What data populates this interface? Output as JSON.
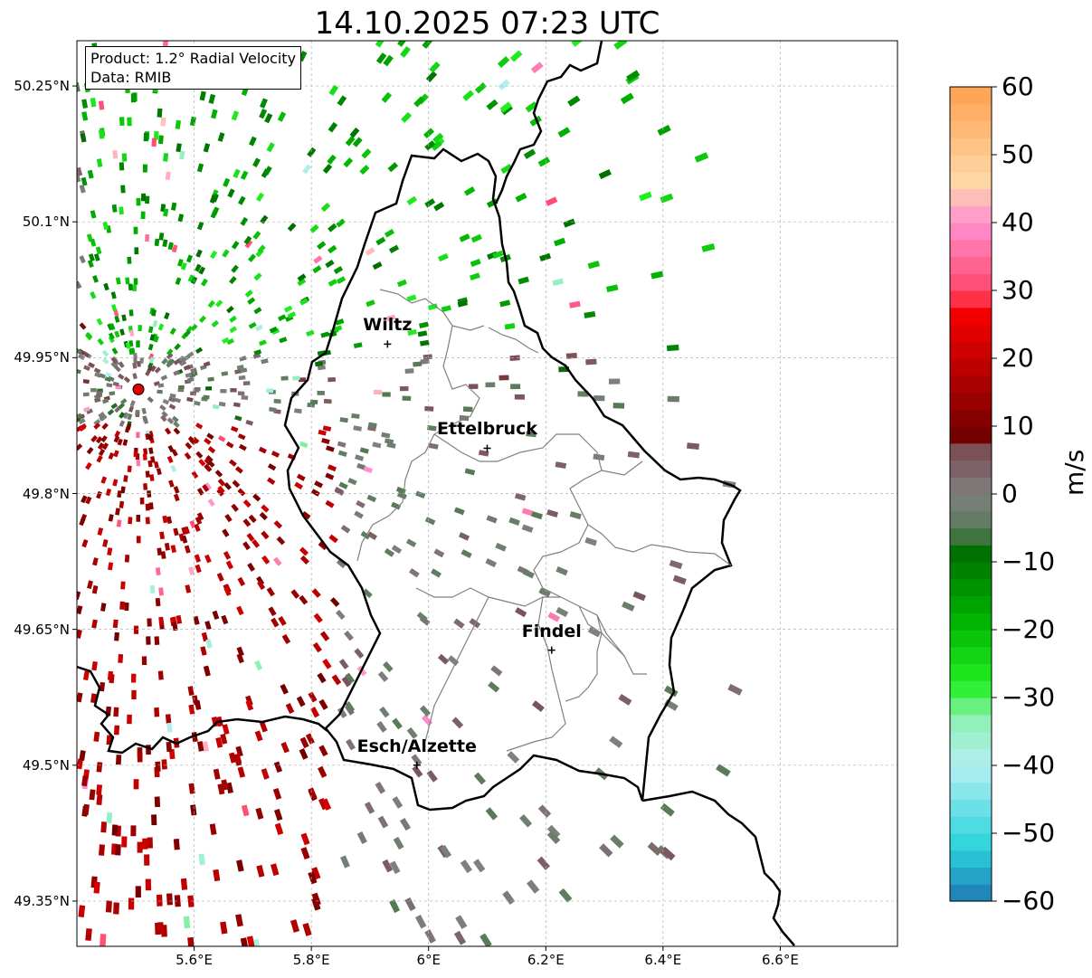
{
  "title": "14.10.2025 07:23 UTC",
  "info": {
    "product": "Product: 1.2° Radial Velocity",
    "data_source": "Data: RMIB"
  },
  "map": {
    "lon_range": [
      5.4,
      6.8
    ],
    "lat_range": [
      49.3,
      50.3
    ],
    "lat_ticks": [
      {
        "value": 50.25,
        "label": "50.25°N"
      },
      {
        "value": 50.1,
        "label": "50.1°N"
      },
      {
        "value": 49.95,
        "label": "49.95°N"
      },
      {
        "value": 49.8,
        "label": "49.8°N"
      },
      {
        "value": 49.65,
        "label": "49.65°N"
      },
      {
        "value": 49.5,
        "label": "49.5°N"
      },
      {
        "value": 49.35,
        "label": "49.35°N"
      }
    ],
    "lon_ticks": [
      {
        "value": 5.6,
        "label": "5.6°E"
      },
      {
        "value": 5.8,
        "label": "5.8°E"
      },
      {
        "value": 6.0,
        "label": "6°E"
      },
      {
        "value": 6.2,
        "label": "6.2°E"
      },
      {
        "value": 6.4,
        "label": "6.4°E"
      },
      {
        "value": 6.6,
        "label": "6.6°E"
      }
    ],
    "radar_site": {
      "lon": 5.505,
      "lat": 49.915,
      "color": "#e00000"
    },
    "cities": [
      {
        "name": "Wiltz",
        "lon": 5.93,
        "lat": 49.965
      },
      {
        "name": "Ettelbruck",
        "lon": 6.1,
        "lat": 49.85
      },
      {
        "name": "Findel",
        "lon": 6.21,
        "lat": 49.627
      },
      {
        "name": "Esch/Alzette",
        "lon": 5.98,
        "lat": 49.5
      }
    ]
  },
  "colorbar": {
    "min": -60,
    "max": 60,
    "unit": "m/s",
    "ticks": [
      {
        "value": 60,
        "label": "60"
      },
      {
        "value": 50,
        "label": "50"
      },
      {
        "value": 40,
        "label": "40"
      },
      {
        "value": 30,
        "label": "30"
      },
      {
        "value": 20,
        "label": "20"
      },
      {
        "value": 10,
        "label": "10"
      },
      {
        "value": 0,
        "label": "0"
      },
      {
        "value": -10,
        "label": "−10"
      },
      {
        "value": -20,
        "label": "−20"
      },
      {
        "value": -30,
        "label": "−30"
      },
      {
        "value": -40,
        "label": "−40"
      },
      {
        "value": -50,
        "label": "−50"
      },
      {
        "value": -60,
        "label": "−60"
      }
    ],
    "stops": [
      {
        "value": -60,
        "color": "#1f77b4"
      },
      {
        "value": -52,
        "color": "#2ad4dc"
      },
      {
        "value": -40,
        "color": "#b4eef2"
      },
      {
        "value": -33,
        "color": "#8ef0b4"
      },
      {
        "value": -28,
        "color": "#22f022"
      },
      {
        "value": -18,
        "color": "#00b000"
      },
      {
        "value": -7,
        "color": "#006400"
      },
      {
        "value": -6,
        "color": "#527a52"
      },
      {
        "value": 0,
        "color": "#808080"
      },
      {
        "value": 7,
        "color": "#7a4a52"
      },
      {
        "value": 8,
        "color": "#700000"
      },
      {
        "value": 28,
        "color": "#ff0000"
      },
      {
        "value": 29,
        "color": "#ff4060"
      },
      {
        "value": 40,
        "color": "#ff90d0"
      },
      {
        "value": 46,
        "color": "#ffd8a8"
      },
      {
        "value": 60,
        "color": "#ffa050"
      }
    ]
  }
}
